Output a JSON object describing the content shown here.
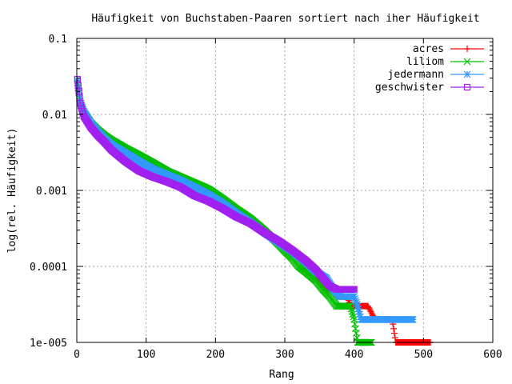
{
  "chart_data": {
    "type": "line",
    "title": "Häufigkeit von Buchstaben-Paaren sortiert nach iher Häufigkeit",
    "xlabel": "Rang",
    "ylabel": "log(rel. Häufigkeit)",
    "xlim": [
      0,
      600
    ],
    "ylim": [
      1e-05,
      0.1
    ],
    "yscale": "log",
    "grid": true,
    "legend_position": "top-right",
    "x_ticks": [
      {
        "value": 0,
        "label": "0"
      },
      {
        "value": 100,
        "label": "100"
      },
      {
        "value": 200,
        "label": "200"
      },
      {
        "value": 300,
        "label": "300"
      },
      {
        "value": 400,
        "label": "400"
      },
      {
        "value": 500,
        "label": "500"
      },
      {
        "value": 600,
        "label": "600"
      }
    ],
    "y_ticks": [
      {
        "value": 0.1,
        "label": "0.1"
      },
      {
        "value": 0.01,
        "label": "0.01"
      },
      {
        "value": 0.001,
        "label": "0.001"
      },
      {
        "value": 0.0001,
        "label": "0.0001"
      },
      {
        "value": 1e-05,
        "label": "1e-005"
      }
    ],
    "series": [
      {
        "name": "acres",
        "color": "#ff0000",
        "marker": "plus",
        "points": [
          [
            1,
            0.024
          ],
          [
            5,
            0.014
          ],
          [
            10,
            0.0105
          ],
          [
            20,
            0.0078
          ],
          [
            30,
            0.0062
          ],
          [
            40,
            0.0052
          ],
          [
            50,
            0.0045
          ],
          [
            70,
            0.0036
          ],
          [
            90,
            0.0029
          ],
          [
            110,
            0.0024
          ],
          [
            130,
            0.0019
          ],
          [
            150,
            0.00145
          ],
          [
            170,
            0.0012
          ],
          [
            190,
            0.00098
          ],
          [
            210,
            0.00078
          ],
          [
            230,
            0.00055
          ],
          [
            250,
            0.00042
          ],
          [
            270,
            0.00032
          ],
          [
            290,
            0.00022
          ],
          [
            310,
            0.000155
          ],
          [
            330,
            0.0001
          ],
          [
            340,
            7.8e-05
          ],
          [
            350,
            6.2e-05
          ],
          [
            360,
            5e-05
          ],
          [
            370,
            5e-05
          ],
          [
            375,
            4e-05
          ],
          [
            390,
            4e-05
          ],
          [
            395,
            3e-05
          ],
          [
            420,
            3e-05
          ],
          [
            430,
            2e-05
          ],
          [
            455,
            2e-05
          ],
          [
            460,
            1e-05
          ],
          [
            510,
            1e-05
          ]
        ]
      },
      {
        "name": "liliom",
        "color": "#00c000",
        "marker": "cross",
        "points": [
          [
            1,
            0.026
          ],
          [
            5,
            0.014
          ],
          [
            10,
            0.0105
          ],
          [
            20,
            0.0078
          ],
          [
            30,
            0.0063
          ],
          [
            40,
            0.0053
          ],
          [
            50,
            0.0046
          ],
          [
            70,
            0.0036
          ],
          [
            90,
            0.0029
          ],
          [
            110,
            0.0023
          ],
          [
            130,
            0.0018
          ],
          [
            150,
            0.0015
          ],
          [
            170,
            0.00125
          ],
          [
            190,
            0.00104
          ],
          [
            210,
            0.00078
          ],
          [
            230,
            0.00057
          ],
          [
            250,
            0.00043
          ],
          [
            270,
            0.0003
          ],
          [
            290,
            0.0002
          ],
          [
            300,
            0.00016
          ],
          [
            310,
            0.00013
          ],
          [
            320,
            0.0001
          ],
          [
            330,
            8.5e-05
          ],
          [
            345,
            6.5e-05
          ],
          [
            355,
            5e-05
          ],
          [
            365,
            4e-05
          ],
          [
            375,
            3e-05
          ],
          [
            395,
            3e-05
          ],
          [
            400,
            2e-05
          ],
          [
            405,
            1e-05
          ],
          [
            425,
            1e-05
          ]
        ]
      },
      {
        "name": "jedermann",
        "color": "#3399ff",
        "marker": "star",
        "points": [
          [
            1,
            0.028
          ],
          [
            5,
            0.015
          ],
          [
            10,
            0.011
          ],
          [
            20,
            0.0078
          ],
          [
            30,
            0.006
          ],
          [
            40,
            0.0048
          ],
          [
            50,
            0.004
          ],
          [
            70,
            0.0031
          ],
          [
            90,
            0.0024
          ],
          [
            110,
            0.0019
          ],
          [
            130,
            0.0016
          ],
          [
            150,
            0.00135
          ],
          [
            170,
            0.0011
          ],
          [
            190,
            0.00088
          ],
          [
            210,
            0.00068
          ],
          [
            230,
            0.0005
          ],
          [
            250,
            0.00038
          ],
          [
            270,
            0.00028
          ],
          [
            290,
            0.00021
          ],
          [
            310,
            0.00016
          ],
          [
            330,
            0.000115
          ],
          [
            345,
            8.5e-05
          ],
          [
            360,
            7e-05
          ],
          [
            370,
            5e-05
          ],
          [
            380,
            4e-05
          ],
          [
            400,
            4e-05
          ],
          [
            405,
            3e-05
          ],
          [
            410,
            2e-05
          ],
          [
            485,
            2e-05
          ]
        ]
      },
      {
        "name": "geschwister",
        "color": "#a020f0",
        "marker": "square",
        "points": [
          [
            1,
            0.029
          ],
          [
            5,
            0.014
          ],
          [
            10,
            0.0095
          ],
          [
            20,
            0.0068
          ],
          [
            30,
            0.0053
          ],
          [
            40,
            0.0043
          ],
          [
            50,
            0.0034
          ],
          [
            70,
            0.0024
          ],
          [
            90,
            0.0018
          ],
          [
            110,
            0.0015
          ],
          [
            130,
            0.0013
          ],
          [
            150,
            0.0011
          ],
          [
            170,
            0.00085
          ],
          [
            190,
            0.00072
          ],
          [
            210,
            0.00058
          ],
          [
            230,
            0.00045
          ],
          [
            250,
            0.00037
          ],
          [
            270,
            0.00028
          ],
          [
            290,
            0.00022
          ],
          [
            310,
            0.000165
          ],
          [
            330,
            0.00012
          ],
          [
            345,
            9e-05
          ],
          [
            355,
            7e-05
          ],
          [
            365,
            5.5e-05
          ],
          [
            375,
            5e-05
          ],
          [
            400,
            5e-05
          ]
        ]
      }
    ]
  }
}
